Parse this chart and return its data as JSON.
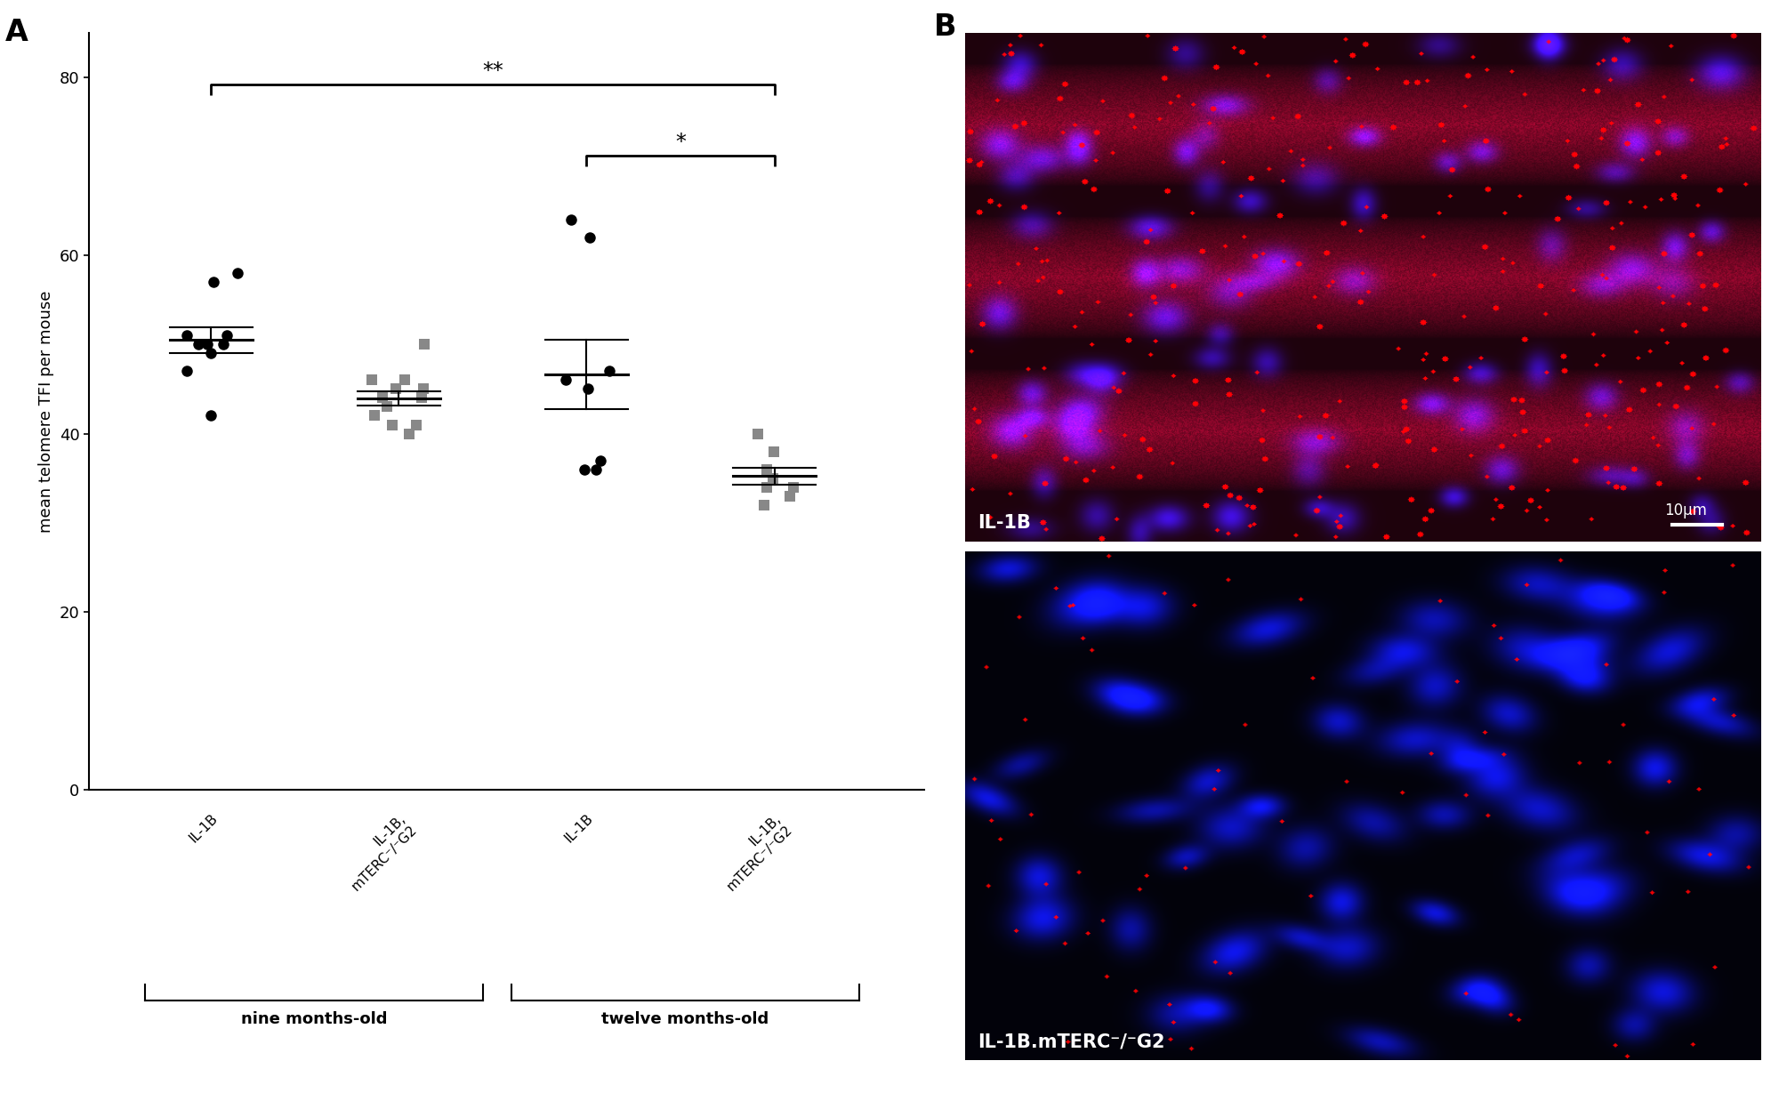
{
  "panel_A_label": "A",
  "panel_B_label": "B",
  "ylabel": "mean telomere TFI per mouse",
  "ylim": [
    0,
    85
  ],
  "yticks": [
    0,
    20,
    40,
    60,
    80
  ],
  "age_labels": [
    "nine months-old",
    "twelve months-old"
  ],
  "group1_data": [
    51,
    51,
    50,
    50,
    58,
    57,
    49,
    47,
    50,
    42
  ],
  "group2_data": [
    40,
    41,
    41,
    42,
    43,
    44,
    44,
    45,
    45,
    46,
    46,
    50
  ],
  "group3_data": [
    64,
    62,
    47,
    46,
    45,
    37,
    36,
    36
  ],
  "group4_data": [
    40,
    38,
    36,
    35,
    34,
    34,
    33,
    32
  ],
  "group1_color": "#000000",
  "group2_color": "#888888",
  "group3_color": "#000000",
  "group4_color": "#888888",
  "marker1": "o",
  "marker2": "s",
  "marker3": "o",
  "marker4": "s",
  "background_color": "#ffffff",
  "label_fontsize": 13,
  "tick_fontsize": 13,
  "marker_size": 9,
  "image1_label": "IL-1B",
  "image2_label": "IL-1B.mTERC⁻/⁻G2",
  "scale_bar_label": "10μm"
}
